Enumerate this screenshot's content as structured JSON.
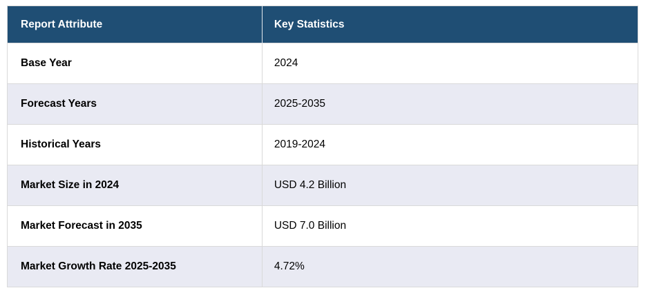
{
  "chart_data": {
    "type": "table",
    "columns": [
      "Report Attribute",
      "Key Statistics"
    ],
    "rows": [
      [
        "Base Year",
        "2024"
      ],
      [
        "Forecast Years",
        "2025-2035"
      ],
      [
        "Historical Years",
        "2019-2024"
      ],
      [
        "Market Size in 2024",
        "USD 4.2 Billion"
      ],
      [
        "Market Forecast in 2035",
        "USD 7.0 Billion"
      ],
      [
        "Market Growth Rate 2025-2035",
        "4.72%"
      ]
    ],
    "layout": {
      "header_position": "top",
      "row_striping": "alternating starting white"
    }
  },
  "colors": {
    "header_bg": "#1F4E74",
    "header_text": "#FFFFFF",
    "row_bg": "#FFFFFF",
    "row_alt_bg": "#E9EAF3",
    "border": "#D9D9D9",
    "body_text": "#000000"
  }
}
